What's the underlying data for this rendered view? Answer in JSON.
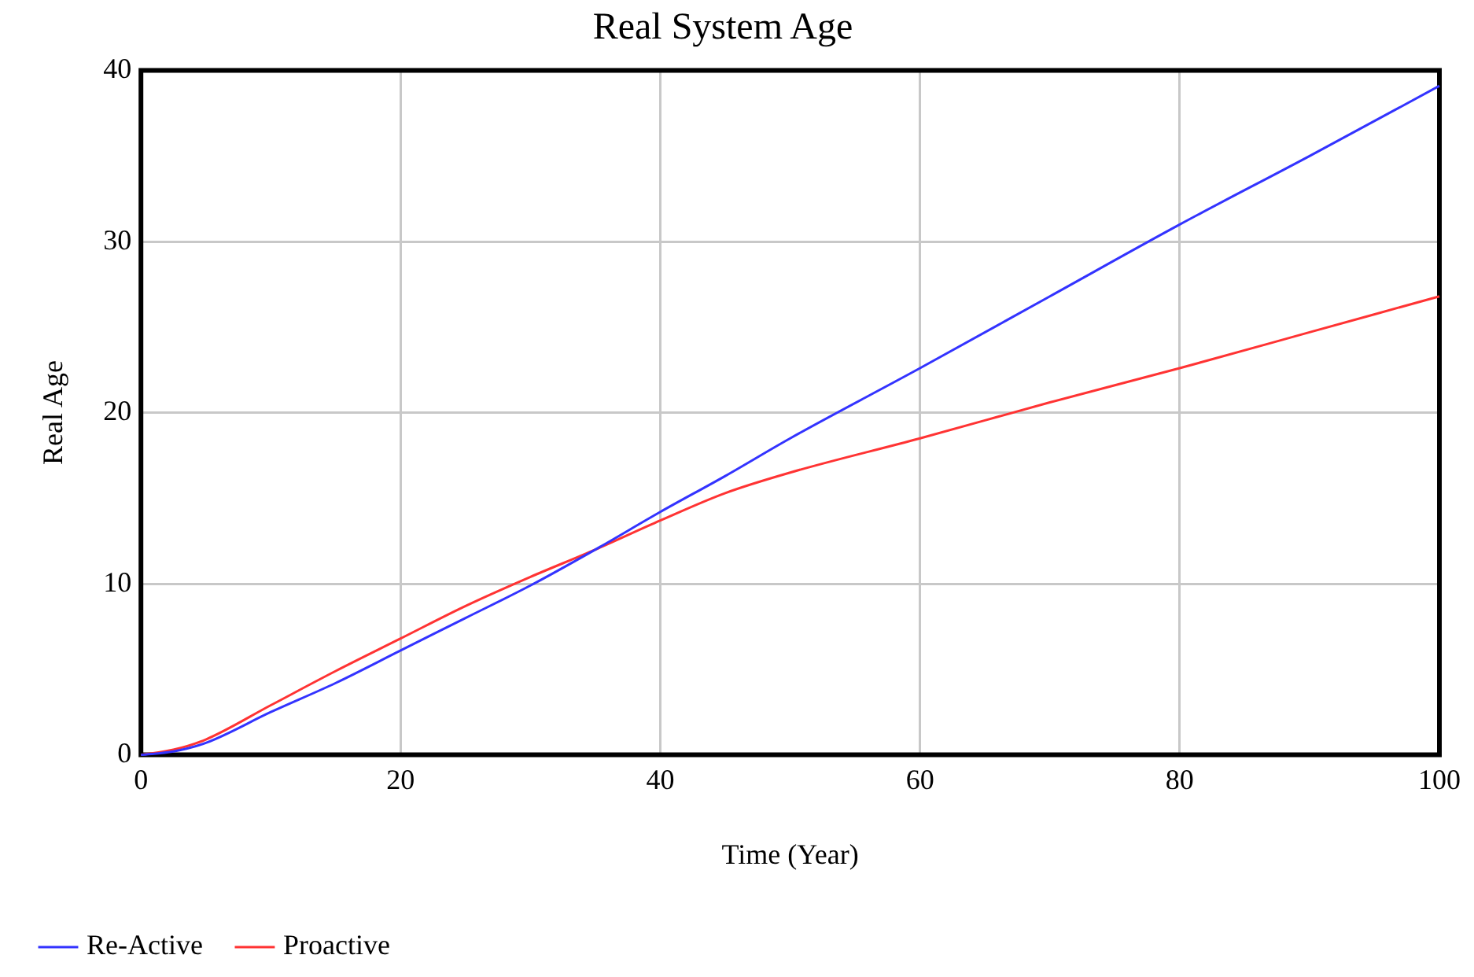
{
  "chart_data": {
    "type": "line",
    "title": "Real System Age",
    "xlabel": "Time (Year)",
    "ylabel": "Real Age",
    "x": [
      0,
      2.5,
      5,
      10,
      15,
      20,
      25,
      30,
      35,
      40,
      45,
      50,
      60,
      70,
      80,
      90,
      100
    ],
    "series": [
      {
        "name": "Re-Active",
        "color": "#3333ff",
        "values": [
          0,
          0.2,
          0.7,
          2.5,
          4.2,
          6.1,
          8.0,
          9.9,
          12.0,
          14.2,
          16.3,
          18.5,
          22.6,
          26.8,
          31.0,
          35.0,
          39.1
        ]
      },
      {
        "name": "Proactive",
        "color": "#ff3333",
        "values": [
          0,
          0.3,
          0.9,
          2.9,
          4.9,
          6.8,
          8.7,
          10.4,
          12.0,
          13.7,
          15.3,
          16.5,
          18.5,
          20.6,
          22.6,
          24.7,
          26.8
        ]
      }
    ],
    "xlim": [
      0,
      100
    ],
    "xticks": [
      0,
      20,
      40,
      60,
      80,
      100
    ],
    "ylim": [
      0,
      40
    ],
    "yticks": [
      0,
      10,
      20,
      30,
      40
    ],
    "grid": true,
    "legend": "bottom",
    "marker": "none",
    "line_style": "solid"
  }
}
